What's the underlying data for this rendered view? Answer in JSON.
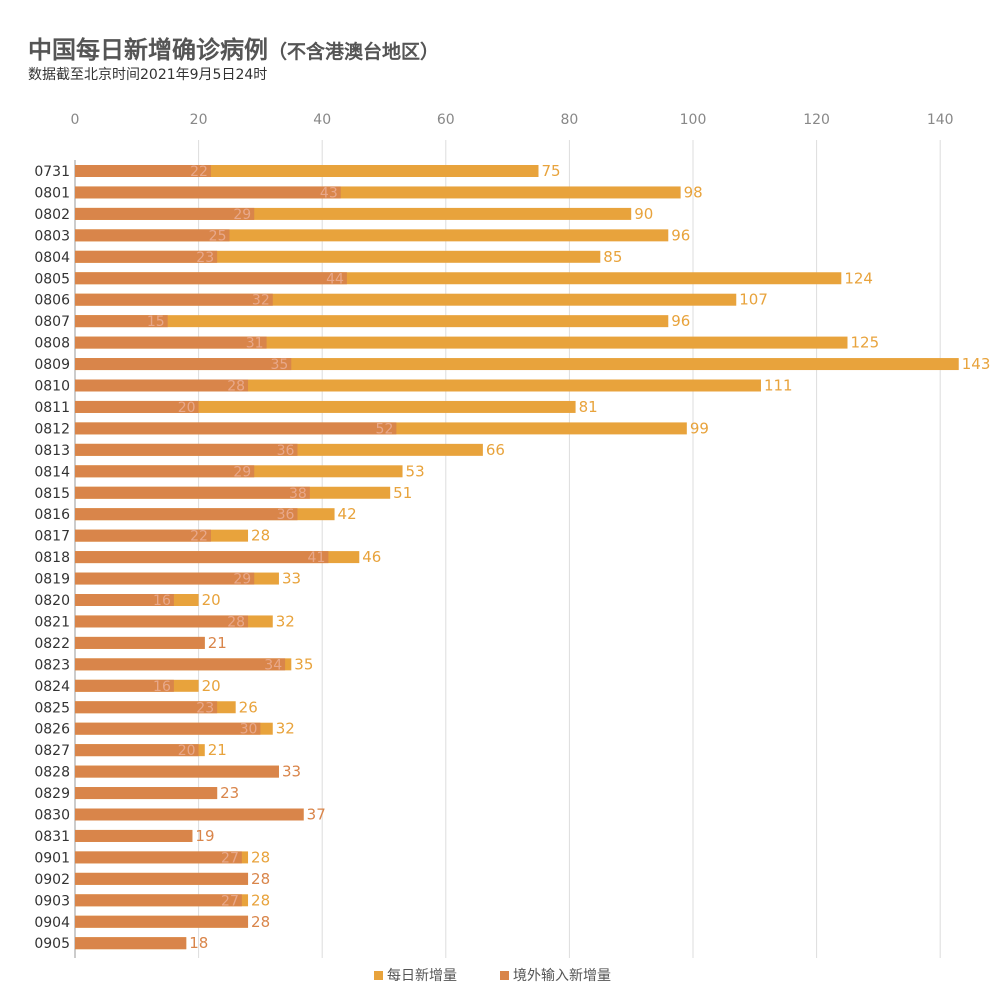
{
  "header": {
    "title": "中国每日新增确诊病例",
    "title_note": "（不含港澳台地区）",
    "subtitle": "数据截至北京时间2021年9月5日24时"
  },
  "colors": {
    "total": "#E8A33C",
    "imported": "#D9854A",
    "inner_label": "#E8A88A",
    "grid": "#DDDDDD"
  },
  "chart_data": {
    "type": "bar",
    "orientation": "horizontal",
    "overlay": true,
    "title": "中国每日新增确诊病例（不含港澳台地区）",
    "subtitle": "数据截至北京时间2021年9月5日24时",
    "xlabel": "",
    "ylabel": "",
    "xlim": [
      0,
      140
    ],
    "xticks": [
      0,
      20,
      40,
      60,
      80,
      100,
      120,
      140
    ],
    "grid": true,
    "legend_position": "bottom-center",
    "categories": [
      "0731",
      "0801",
      "0802",
      "0803",
      "0804",
      "0805",
      "0806",
      "0807",
      "0808",
      "0809",
      "0810",
      "0811",
      "0812",
      "0813",
      "0814",
      "0815",
      "0816",
      "0817",
      "0818",
      "0819",
      "0820",
      "0821",
      "0822",
      "0823",
      "0824",
      "0825",
      "0826",
      "0827",
      "0828",
      "0829",
      "0830",
      "0831",
      "0901",
      "0902",
      "0903",
      "0904",
      "0905"
    ],
    "series": [
      {
        "name": "每日新增量",
        "values": [
          75,
          98,
          90,
          96,
          85,
          124,
          107,
          96,
          125,
          143,
          111,
          81,
          99,
          66,
          53,
          51,
          42,
          28,
          46,
          33,
          20,
          32,
          21,
          35,
          20,
          26,
          32,
          21,
          33,
          23,
          37,
          19,
          28,
          28,
          28,
          28,
          18
        ]
      },
      {
        "name": "境外输入新增量",
        "values": [
          22,
          43,
          29,
          25,
          23,
          44,
          32,
          15,
          31,
          35,
          28,
          20,
          52,
          36,
          29,
          38,
          36,
          22,
          41,
          29,
          16,
          28,
          21,
          34,
          16,
          23,
          30,
          20,
          33,
          23,
          37,
          19,
          27,
          28,
          27,
          28,
          18
        ]
      }
    ]
  }
}
